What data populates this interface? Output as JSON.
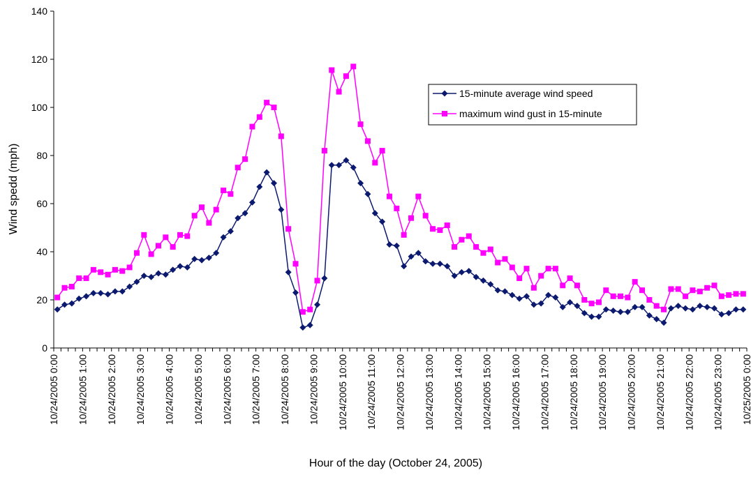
{
  "chart_data": {
    "type": "line",
    "xlabel": "Hour of the day (October 24, 2005)",
    "ylabel": "Wind spedd (mph)",
    "ylim": [
      0,
      140
    ],
    "yticks": [
      0,
      20,
      40,
      60,
      80,
      100,
      120,
      140
    ],
    "x_tick_labels": [
      "10/24/2005 0:00",
      "10/24/2005 1:00",
      "10/24/2005 2:00",
      "10/24/2005 3:00",
      "10/24/2005 4:00",
      "10/24/2005 5:00",
      "10/24/2005 6:00",
      "10/24/2005 7:00",
      "10/24/2005 8:00",
      "10/24/2005 9:00",
      "10/24/2005 10:00",
      "10/24/2005 11:00",
      "10/24/2005 12:00",
      "10/24/2005 13:00",
      "10/24/2005 14:00",
      "10/24/2005 15:00",
      "10/24/2005 16:00",
      "10/24/2005 17:00",
      "10/24/2005 18:00",
      "10/24/2005 19:00",
      "10/24/2005 20:00",
      "10/24/2005 21:00",
      "10/24/2005 22:00",
      "10/24/2005 23:00",
      "10/25/2005 0:00"
    ],
    "interval_minutes": 15,
    "grid": false,
    "legend_position": "top-right",
    "series": [
      {
        "name": "15-minute average wind speed",
        "color": "#0b1a6e",
        "marker": "diamond",
        "values": [
          16,
          18,
          18.5,
          20.5,
          21.5,
          22.8,
          22.8,
          22.3,
          23.5,
          23.5,
          25.5,
          27.5,
          30,
          29.5,
          31,
          30.5,
          32.5,
          34,
          33.5,
          37,
          36.5,
          37.5,
          39.5,
          46,
          48.5,
          54,
          56,
          60.5,
          67,
          73,
          68.5,
          57.5,
          31.5,
          23,
          8.5,
          9.5,
          18,
          29,
          76,
          76,
          78,
          75,
          68.5,
          64,
          56,
          52.5,
          43,
          42.5,
          34,
          38,
          39.5,
          36,
          35,
          35,
          34,
          30,
          31.5,
          32,
          29.5,
          28,
          26.5,
          24,
          23.5,
          22,
          20.5,
          21.5,
          18,
          18.5,
          22,
          21,
          17,
          19,
          17.5,
          14.5,
          13,
          13,
          16,
          15.5,
          15,
          15,
          17,
          17,
          13.5,
          12,
          10.5,
          16.5,
          17.5,
          16.5,
          16,
          17.5,
          17,
          16.5,
          14,
          14.5,
          16,
          16
        ]
      },
      {
        "name": "maximum wind gust in 15-minute",
        "color": "#ff00ff",
        "marker": "square",
        "values": [
          21,
          25,
          25.5,
          29,
          29,
          32.5,
          31.5,
          30.5,
          32.5,
          32,
          33.5,
          39.5,
          47,
          39,
          42.5,
          46,
          42,
          47,
          46.5,
          55,
          58.5,
          52,
          57.5,
          65.5,
          64,
          75,
          78.5,
          92,
          96,
          102,
          100,
          88,
          49.5,
          35,
          15,
          16,
          28,
          82,
          115.5,
          106.5,
          113,
          117,
          93,
          86,
          77,
          82,
          63,
          58,
          47,
          54,
          63,
          55,
          49.5,
          49,
          51,
          42,
          45,
          46.5,
          42,
          39.5,
          41,
          35.5,
          37,
          33.5,
          29,
          33,
          25,
          30,
          33,
          33,
          26,
          29,
          26,
          20,
          18.5,
          19,
          24,
          21.5,
          21.5,
          21,
          27.5,
          24,
          20,
          17.5,
          16,
          24.5,
          24.5,
          21.5,
          24,
          23.5,
          25,
          26,
          21.5,
          22,
          22.5,
          22.5
        ]
      }
    ]
  }
}
